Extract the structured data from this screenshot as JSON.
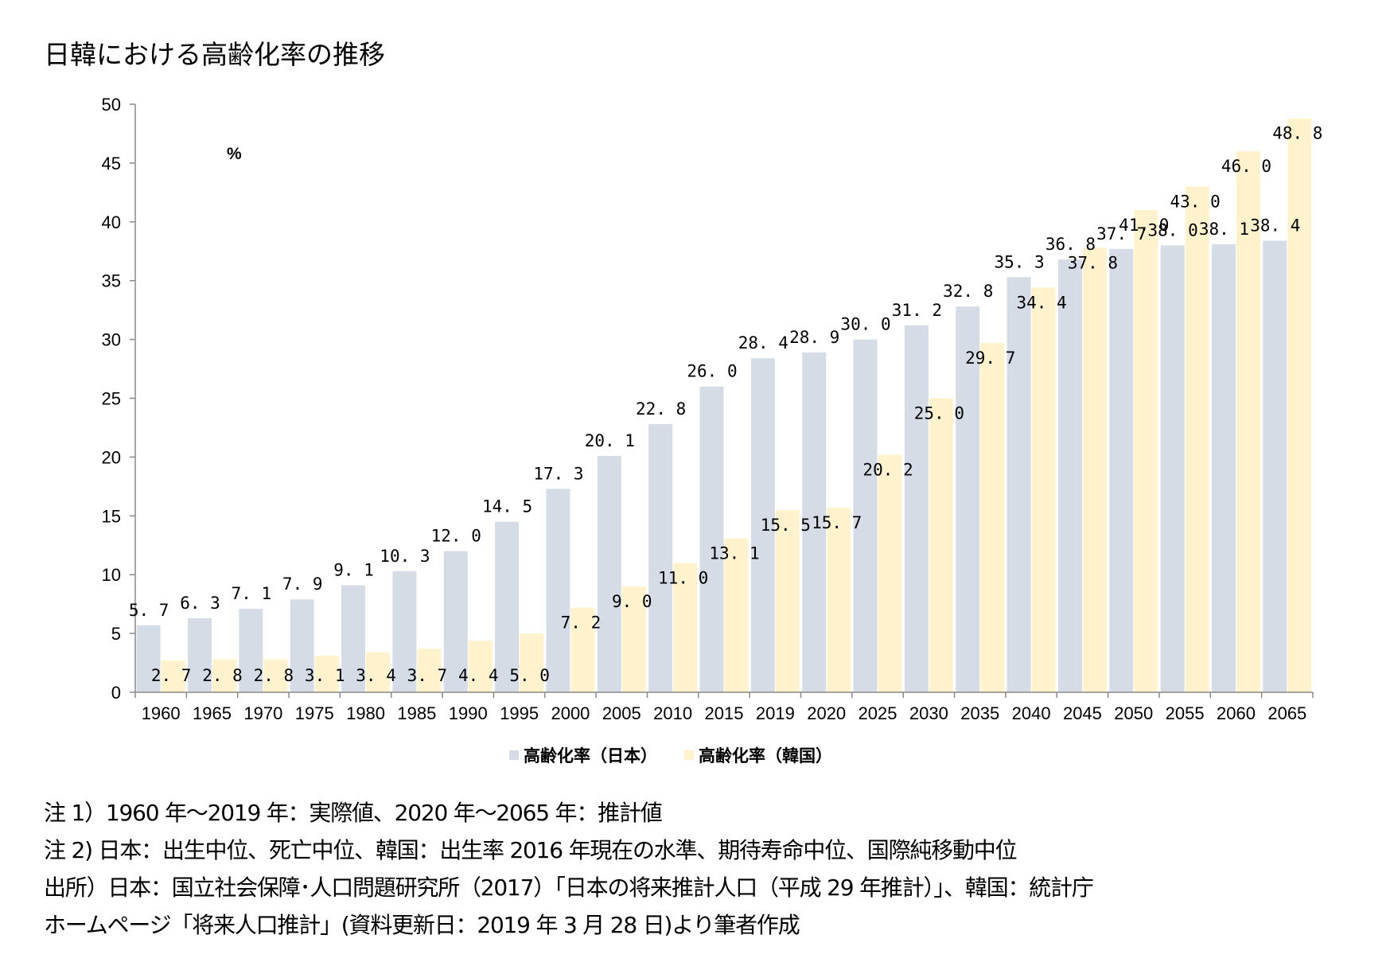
{
  "title": "日韓における高齢化率の推移",
  "unit": "%",
  "legend": [
    {
      "label": "高齢化率（日本）",
      "color": "#D6DCE5"
    },
    {
      "label": "高齢化率（韓国）",
      "color": "#FFF2CC"
    }
  ],
  "notes": [
    "注 1）1960 年～2019 年：実際値、2020 年～2065 年：推計値",
    "注 2) 日本：出生中位、死亡中位、韓国：出生率 2016 年現在の水準、期待寿命中位、国際純移動中位",
    "出所）日本：国立社会保障･人口問題研究所（2017）「日本の将来推計人口（平成 29  年推計）」、韓国：統計庁",
    "ホームページ「将来人口推計」(資料更新日：2019 年 3 月 28 日)より筆者作成"
  ],
  "chart_data": {
    "type": "bar",
    "title": "日韓における高齢化率の推移",
    "xlabel": "",
    "ylabel": "%",
    "ylim": [
      0,
      50
    ],
    "yticks": [
      0,
      5,
      10,
      15,
      20,
      25,
      30,
      35,
      40,
      45,
      50
    ],
    "grid": false,
    "legend_position": "bottom",
    "categories": [
      "1960",
      "1965",
      "1970",
      "1975",
      "1980",
      "1985",
      "1990",
      "1995",
      "2000",
      "2005",
      "2010",
      "2015",
      "2019",
      "2020",
      "2025",
      "2030",
      "2035",
      "2040",
      "2045",
      "2050",
      "2055",
      "2060",
      "2065"
    ],
    "series": [
      {
        "name": "高齢化率（日本）",
        "color": "#D6DCE5",
        "values": [
          5.7,
          6.3,
          7.1,
          7.9,
          9.1,
          10.3,
          12.0,
          14.5,
          17.3,
          20.1,
          22.8,
          26.0,
          28.4,
          28.9,
          30.0,
          31.2,
          32.8,
          35.3,
          36.8,
          37.7,
          38.0,
          38.1,
          38.4
        ]
      },
      {
        "name": "高齢化率（韓国）",
        "color": "#FFF2CC",
        "values": [
          2.7,
          2.8,
          2.8,
          3.1,
          3.4,
          3.7,
          4.4,
          5.0,
          7.2,
          9.0,
          11.0,
          13.1,
          15.5,
          15.7,
          20.2,
          25.0,
          29.7,
          34.4,
          37.8,
          41.0,
          43.0,
          46.0,
          48.8
        ]
      }
    ]
  }
}
